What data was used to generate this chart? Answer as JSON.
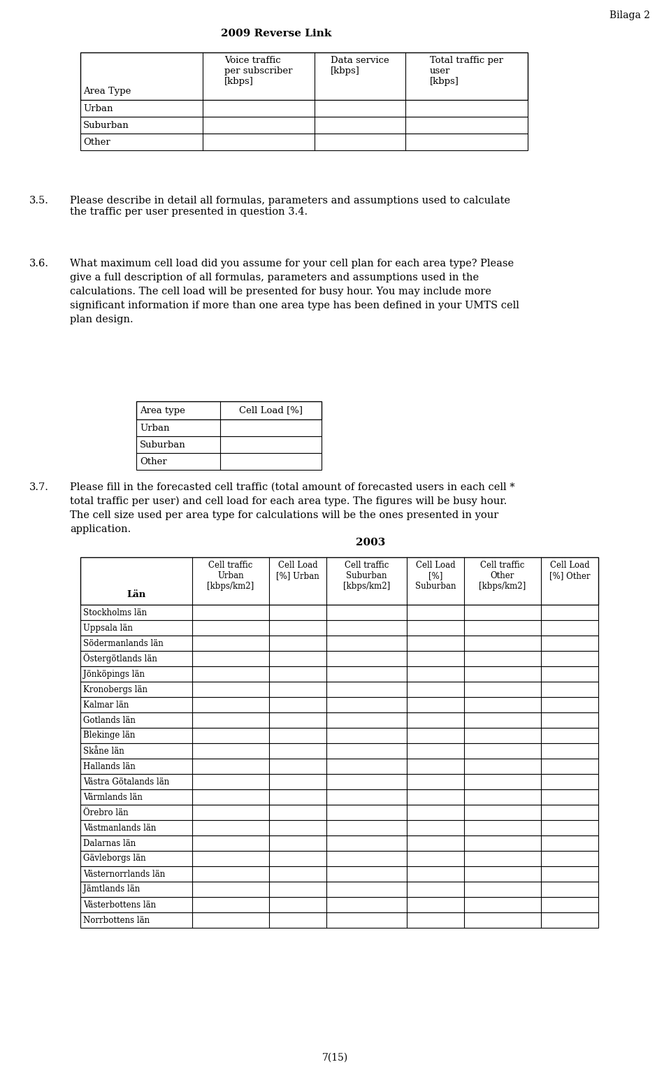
{
  "page_label": "Bilaga 2",
  "page_number": "7(15)",
  "table1_title": "2009 Reverse Link",
  "table1_headers_col0": "Area Type",
  "table1_headers_col1": "Voice traffic\nper subscriber\n[kbps]",
  "table1_headers_col2": "Data service\n[kbps]",
  "table1_headers_col3": "Total traffic per\nuser\n[kbps]",
  "table1_rows": [
    "Urban",
    "Suburban",
    "Other"
  ],
  "section35_num": "3.5.",
  "section35_text": "Please describe in detail all formulas, parameters and assumptions used to calculate\nthe traffic per user presented in question 3.4.",
  "section36_num": "3.6.",
  "section36_text_line1": "What maximum cell load did you assume for your cell plan for each area type? Please",
  "section36_text_line2": "give a full description of all formulas, parameters and assumptions used in the",
  "section36_text_line3": "calculations. The cell load will be presented for busy hour. You may include more",
  "section36_text_line4": "significant information if more than one area type has been defined in your UMTS cell",
  "section36_text_line5": "plan design.",
  "table2_header_col0": "Area type",
  "table2_header_col1": "Cell Load [%]",
  "table2_rows": [
    "Urban",
    "Suburban",
    "Other"
  ],
  "section37_num": "3.7.",
  "section37_text_line1": "Please fill in the forecasted cell traffic (total amount of forecasted users in each cell *",
  "section37_text_line2": "total traffic per user) and cell load for each area type. The figures will be busy hour.",
  "section37_text_line3": "The cell size used per area type for calculations will be the ones presented in your",
  "section37_text_line4": "application.",
  "table3_title": "2003",
  "table3_hdr0": "",
  "table3_hdr1": "Cell traffic\nUrban\n[kbps/km2]",
  "table3_hdr2": "Cell Load\n[%] Urban",
  "table3_hdr3": "Cell traffic\nSuburban\n[kbps/km2]",
  "table3_hdr4": "Cell Load\n[%]\nSuburban",
  "table3_hdr5": "Cell traffic\nOther\n[kbps/km2]",
  "table3_hdr6": "Cell Load\n[%] Other",
  "table3_hdr_lan": "Län",
  "table3_rows": [
    "Stockholms län",
    "Uppsala län",
    "Södermanlands län",
    "Östergötlands län",
    "Jönköpings län",
    "Kronobergs län",
    "Kalmar län",
    "Gotlands län",
    "Blekinge län",
    "Skåne län",
    "Hallands län",
    "Västra Götalands län",
    "Värmlands län",
    "Örebro län",
    "Västmanlands län",
    "Dalarnas län",
    "Gävleborgs län",
    "Västernorrlands län",
    "Jämtlands län",
    "Västerbottens län",
    "Norrbottens län"
  ],
  "bg_color": "#ffffff",
  "text_color": "#000000"
}
